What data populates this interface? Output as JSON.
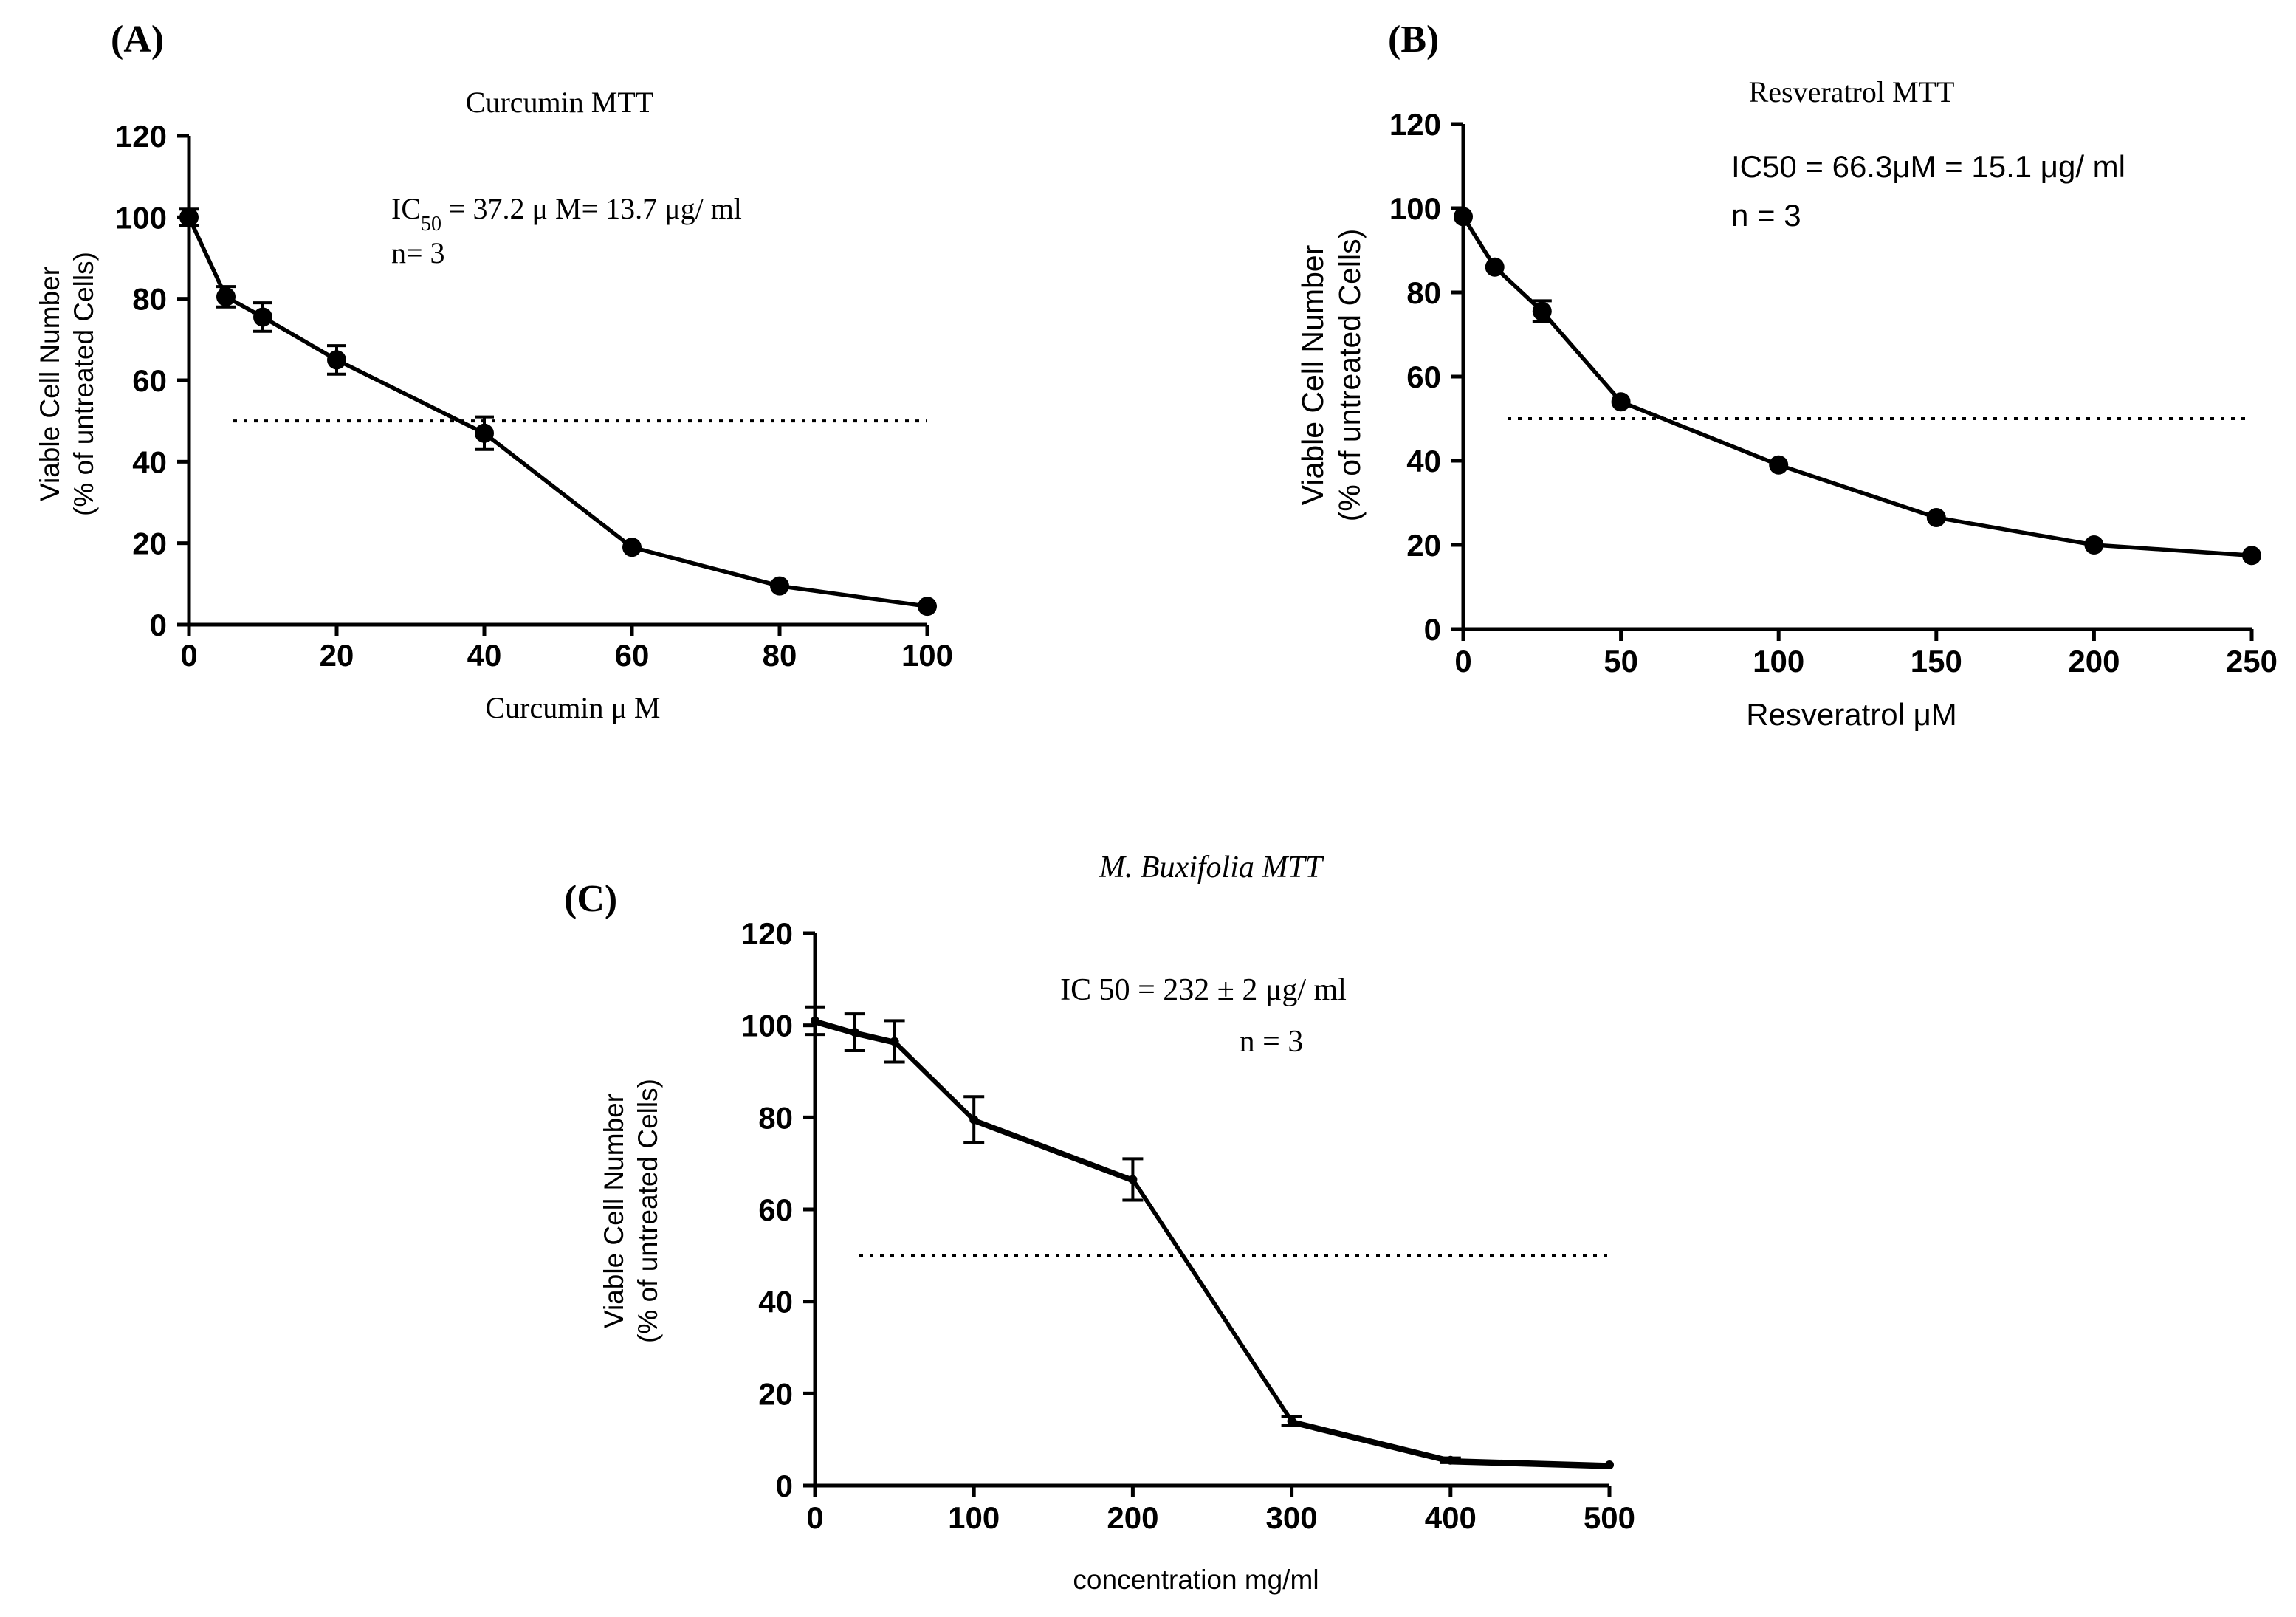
{
  "chart_data": [
    {
      "id": "A",
      "type": "line",
      "panel_label": "(A)",
      "title": "Curcumin MTT",
      "xlabel": "Curcumin μ  M",
      "ylabel": [
        "Viable Cell Number",
        "(% of untreated Cells)"
      ],
      "xlim": [
        0,
        100
      ],
      "ylim": [
        0,
        120
      ],
      "xticks": [
        0,
        20,
        40,
        60,
        80,
        100
      ],
      "yticks": [
        0,
        20,
        40,
        60,
        80,
        100,
        120
      ],
      "grid": false,
      "reference_line_y": 50,
      "annotation": [
        "IC50 = 37.2 μ  M= 13.7  μg/  ml",
        "n= 3"
      ],
      "series": [
        {
          "name": "Curcumin",
          "x": [
            0,
            5,
            10,
            20,
            40,
            60,
            80,
            100
          ],
          "y": [
            100,
            80.5,
            75.5,
            65,
            47,
            19,
            9.5,
            4.5
          ],
          "err": [
            2,
            2.5,
            3.5,
            3.5,
            4,
            0,
            0,
            0
          ]
        }
      ]
    },
    {
      "id": "B",
      "type": "line",
      "panel_label": "(B)",
      "title": "Resveratrol MTT",
      "xlabel": "Resveratrol μM",
      "ylabel": [
        "Viable Cell Number",
        "(% of untreated Cells)"
      ],
      "xlim": [
        0,
        250
      ],
      "ylim": [
        0,
        120
      ],
      "xticks": [
        0,
        50,
        100,
        150,
        200,
        250
      ],
      "yticks": [
        0,
        20,
        40,
        60,
        80,
        100,
        120
      ],
      "grid": false,
      "reference_line_y": 50,
      "annotation": [
        "IC50 = 66.3μM = 15.1 μg/ ml",
        "n = 3"
      ],
      "series": [
        {
          "name": "Resveratrol",
          "x": [
            0,
            10,
            25,
            50,
            100,
            150,
            200,
            250
          ],
          "y": [
            98,
            86,
            75.5,
            54,
            39,
            26.5,
            20,
            17.5
          ],
          "err": [
            0,
            0,
            2.5,
            0,
            0,
            0,
            0,
            0
          ]
        }
      ]
    },
    {
      "id": "C",
      "type": "line",
      "panel_label": "(C)",
      "title": "M. Buxifolia MTT",
      "xlabel": "concentration mg/ml",
      "ylabel": [
        "Viable Cell Number",
        "(% of untreated Cells)"
      ],
      "xlim": [
        0,
        500
      ],
      "ylim": [
        0,
        120
      ],
      "xticks": [
        0,
        100,
        200,
        300,
        400,
        500
      ],
      "yticks": [
        0,
        20,
        40,
        60,
        80,
        100,
        120
      ],
      "grid": false,
      "reference_line_y": 50,
      "annotation": [
        "IC 50 = 232 ± 2 μg/ ml",
        "n = 3"
      ],
      "series": [
        {
          "name": "M. Buxifolia",
          "x": [
            0,
            25,
            50,
            100,
            200,
            300,
            400,
            500
          ],
          "y": [
            101,
            98.5,
            96.5,
            79.5,
            66.5,
            14,
            5.5,
            4.5
          ],
          "err": [
            3,
            4,
            4.5,
            5,
            4.5,
            1,
            0.5,
            0
          ]
        }
      ]
    }
  ]
}
